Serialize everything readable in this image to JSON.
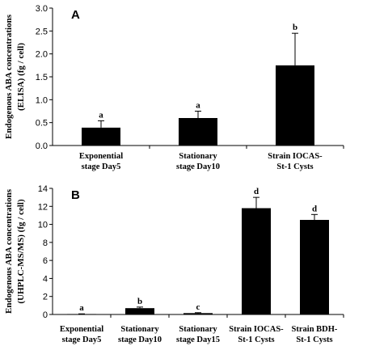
{
  "chart_data": [
    {
      "type": "bar",
      "panel_label": "A",
      "ylabel_line1": "Endogenous ABA  concentrations",
      "ylabel_line2": "(ELISA)  (fg / cell)",
      "ylim": [
        0,
        3.0
      ],
      "yticks": [
        "0.0",
        "0.5",
        "1.0",
        "1.5",
        "2.0",
        "2.5",
        "3.0"
      ],
      "categories": [
        [
          "Exponential",
          "stage Day5"
        ],
        [
          "Stationary",
          "stage Day10"
        ],
        [
          "Strain IOCAS-",
          "St-1 Cysts"
        ]
      ],
      "values": [
        0.39,
        0.6,
        1.75
      ],
      "errors": [
        0.15,
        0.15,
        0.7
      ],
      "sig_letters": [
        "a",
        "a",
        "b"
      ],
      "grid": false,
      "bar_color": "#000000"
    },
    {
      "type": "bar",
      "panel_label": "B",
      "ylabel_line1": "Endogenous ABA  concentrations",
      "ylabel_line2": "(UHPLC-MS/MS)  (fg / cell)",
      "ylim": [
        0,
        14
      ],
      "yticks": [
        "0",
        "2",
        "4",
        "6",
        "8",
        "10",
        "12",
        "14"
      ],
      "categories": [
        [
          "Exponential",
          "stage Day5"
        ],
        [
          "Stationary",
          "stage Day10"
        ],
        [
          "Stationary",
          "stage Day15"
        ],
        [
          "Strain IOCAS-",
          "St-1 Cysts"
        ],
        [
          "Strain BDH-",
          "St-1 Cysts"
        ]
      ],
      "values": [
        0.05,
        0.7,
        0.15,
        11.8,
        10.5
      ],
      "errors": [
        0.02,
        0.12,
        0.05,
        1.2,
        0.6
      ],
      "sig_letters": [
        "a",
        "b",
        "c",
        "d",
        "d"
      ],
      "grid": false,
      "bar_color": "#000000"
    }
  ]
}
